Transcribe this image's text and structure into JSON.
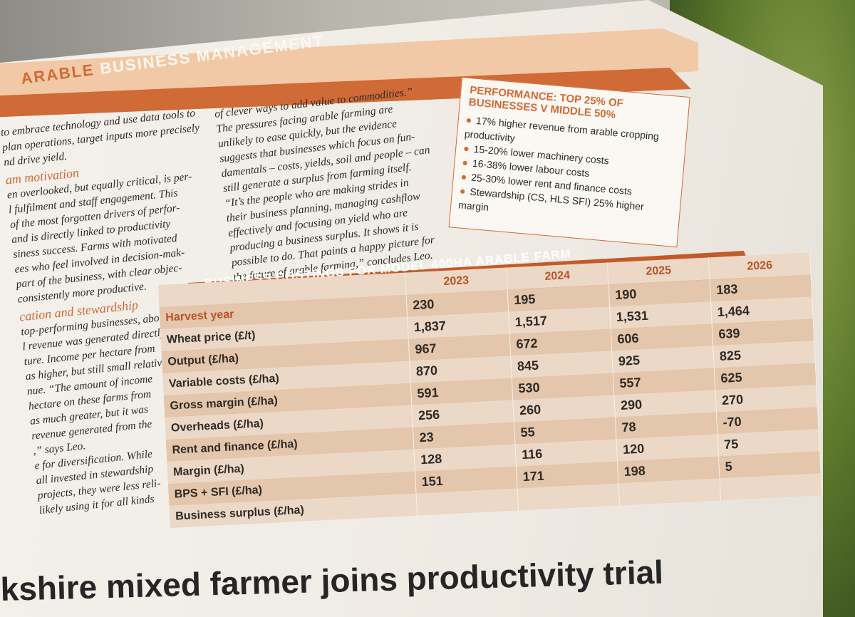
{
  "header": {
    "section_title_part1": "ARABLE",
    "section_title_part2": "BUSINESS MANAGEMENT"
  },
  "column1": {
    "intro_lines": [
      "to embrace technology and use data tools to",
      "plan operations, target inputs more precisely",
      "nd drive yield."
    ],
    "heading_team": "am motivation",
    "team_lines": [
      "en overlooked, but equally critical, is per-",
      "l fulfilment and staff engagement. This",
      "of the most forgotten drivers of perfor-",
      "and is directly linked to productivity",
      "siness success. Farms with motivated",
      "ees who feel involved in decision-mak-",
      "part of the business, with clear objec-",
      "consistently more productive."
    ],
    "heading_diversification": "cation and stewardship",
    "diversification_lines": [
      "top-performing businesses, about",
      "l revenue was generated directly",
      "ture. Income per hectare from",
      "as higher, but still small relative",
      "nue. “The amount of income",
      "hectare on these farms from",
      "as much greater, but it was",
      "revenue generated from the",
      ",” says Leo.",
      "e for diversification. While",
      "all invested in stewardship",
      "projects, they were less reli-",
      "likely using it for all kinds"
    ]
  },
  "column2": {
    "lines": [
      "of clever ways to add value to commodities.”",
      "The pressures facing arable farming are",
      "unlikely to ease quickly, but the evidence",
      "suggests that businesses which focus on fun-",
      "damentals – costs, yields, soil and people – can",
      "still generate a surplus from farming itself.",
      "“It’s the people who are making strides in",
      "their business planning, managing cashflow",
      "effectively and focusing on yield who are",
      "producing a business surplus. It shows it is",
      "possible to do. That paints a happy picture for",
      "the future of arable farming,” concludes Leo."
    ]
  },
  "performance_box": {
    "title": "PERFORMANCE: TOP 25% OF BUSINESSES V MIDDLE 50%",
    "bullets": [
      "17% higher revenue from arable cropping productivity",
      "15-20% lower machinery costs",
      "16-38% lower labour costs",
      "25-30% lower rent and finance costs",
      "Stewardship (CS, HLS SFI) 25% higher margin"
    ]
  },
  "costings_table": {
    "title": "BUSINESS COSTINGS FOR MODEL 400HA ARABLE FARM",
    "years": [
      "2023",
      "2024",
      "2025",
      "2026"
    ],
    "rows": [
      {
        "label": "Harvest year",
        "values": [
          "230",
          "195",
          "190",
          "183"
        ]
      },
      {
        "label": "Wheat price (£/t)",
        "values": [
          "1,837",
          "1,517",
          "1,531",
          "1,464"
        ]
      },
      {
        "label": "Output (£/ha)",
        "values": [
          "967",
          "672",
          "606",
          "639"
        ]
      },
      {
        "label": "Variable costs (£/ha)",
        "values": [
          "870",
          "845",
          "925",
          "825"
        ]
      },
      {
        "label": "Gross margin (£/ha)",
        "values": [
          "591",
          "530",
          "557",
          "625"
        ]
      },
      {
        "label": "Overheads (£/ha)",
        "values": [
          "256",
          "260",
          "290",
          "270"
        ]
      },
      {
        "label": "Rent and finance (£/ha)",
        "values": [
          "23",
          "55",
          "78",
          "-70"
        ]
      },
      {
        "label": "Margin (£/ha)",
        "values": [
          "128",
          "116",
          "120",
          "75"
        ]
      },
      {
        "label": "BPS + SFI (£/ha)",
        "values": [
          "151",
          "171",
          "198",
          "5"
        ]
      },
      {
        "label": "Business surplus (£/ha)",
        "values": [
          "",
          "",
          "",
          ""
        ]
      }
    ]
  },
  "bottom_headline": "kshire mixed farmer joins productivity trial"
}
